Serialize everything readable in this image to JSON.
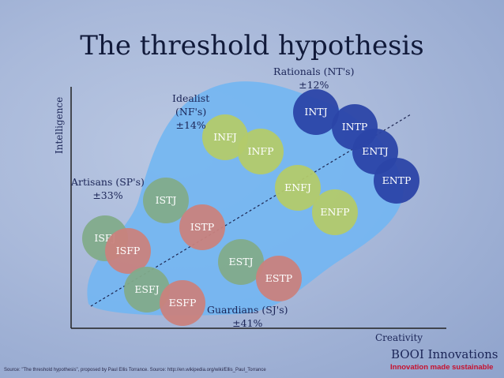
{
  "slide": {
    "title": "The threshold hypothesis",
    "y_axis_label": "Intelligence",
    "x_axis_label": "Creativity",
    "groups": {
      "artisans": {
        "name": "Artisans (SP's)",
        "share": "±33%"
      },
      "idealist": {
        "name_line1": "Idealist",
        "name_line2": "(NF's)",
        "share": "±14%"
      },
      "rationals": {
        "name": "Rationals (NT's)",
        "share": "±12%"
      },
      "guardians": {
        "name": "Guardians (SJ's)",
        "share": "±41%"
      }
    },
    "types": [
      {
        "code": "INTJ",
        "group": "rationals"
      },
      {
        "code": "INTP",
        "group": "rationals"
      },
      {
        "code": "ENTJ",
        "group": "rationals"
      },
      {
        "code": "ENTP",
        "group": "rationals"
      },
      {
        "code": "INFJ",
        "group": "idealist"
      },
      {
        "code": "INFP",
        "group": "idealist"
      },
      {
        "code": "ENFJ",
        "group": "idealist"
      },
      {
        "code": "ENFP",
        "group": "idealist"
      },
      {
        "code": "ISTJ",
        "group": "guardians"
      },
      {
        "code": "ESTJ",
        "group": "guardians"
      },
      {
        "code": "ESFJ",
        "group": "guardians"
      },
      {
        "code": "ISFJ",
        "group": "guardians"
      },
      {
        "code": "ISTP",
        "group": "artisans"
      },
      {
        "code": "ESTP",
        "group": "artisans"
      },
      {
        "code": "ISFP",
        "group": "artisans"
      },
      {
        "code": "ESFP",
        "group": "artisans"
      }
    ],
    "colors": {
      "rationals": "#2b44a8",
      "idealist": "#b3ca6a",
      "guardians": "#82ab8a",
      "artisans": "#c9827d",
      "blob": "#72b6f2"
    },
    "brand": "BOOI Innovations",
    "tagline": "Innovation made sustainable",
    "source": "Source: \"The threshold hypothesis\", proposed by Paul Ellis Torrance. Source: http://en.wikipedia.org/wiki/Ellis_Paul_Torrance"
  }
}
